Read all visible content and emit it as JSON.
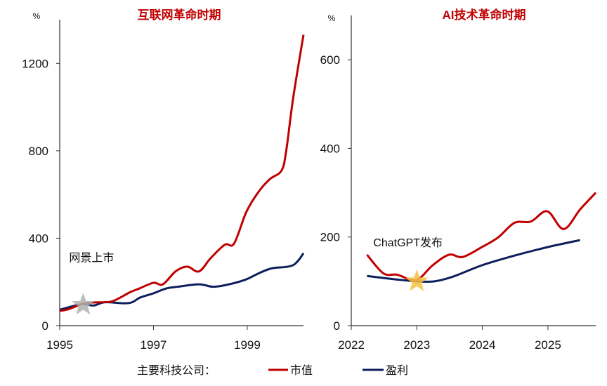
{
  "colors": {
    "market_cap": "#c00000",
    "earnings": "#0c1f5c",
    "axis": "#333333",
    "star_internet": "#b0b0b0",
    "star_ai": "#f5c242"
  },
  "legend": {
    "prefix": "主要科技公司：",
    "items": [
      {
        "label": "市值",
        "color": "#c00000"
      },
      {
        "label": "盈利",
        "color": "#0c1f5c"
      }
    ],
    "placement": "bottom"
  },
  "chart_data": [
    {
      "type": "line",
      "title": "互联网革命时期",
      "ylabel": "%",
      "xlim": [
        1995,
        2000.2
      ],
      "ylim": [
        0,
        1400
      ],
      "x_ticks": [
        1995,
        1997,
        1999
      ],
      "y_ticks": [
        0,
        400,
        800,
        1200
      ],
      "grid": false,
      "annotation": {
        "text": "网景上市",
        "x": 1995.5,
        "y": 95,
        "marker": "star"
      },
      "series": [
        {
          "name": "市值",
          "x": [
            1995.0,
            1995.2,
            1995.47,
            1995.7,
            1996.07,
            1996.27,
            1996.5,
            1996.7,
            1997.0,
            1997.2,
            1997.47,
            1997.72,
            1997.97,
            1998.22,
            1998.52,
            1998.72,
            1998.98,
            1999.23,
            1999.48,
            1999.73,
            1999.83,
            1999.98,
            2000.2
          ],
          "values": [
            67,
            76,
            98,
            106,
            109,
            126,
            153,
            170,
            196,
            189,
            248,
            270,
            248,
            309,
            370,
            376,
            520,
            609,
            670,
            709,
            798,
            1042,
            1331
          ]
        },
        {
          "name": "盈利",
          "x": [
            1995.0,
            1995.47,
            1995.72,
            1995.97,
            1996.47,
            1996.72,
            1997.0,
            1997.27,
            1997.52,
            1997.97,
            1998.27,
            1998.57,
            1998.97,
            1999.22,
            1999.52,
            1999.97,
            2000.2
          ],
          "values": [
            73,
            98,
            92,
            107,
            103,
            129,
            148,
            170,
            178,
            189,
            178,
            187,
            211,
            237,
            262,
            276,
            331
          ]
        }
      ]
    },
    {
      "type": "line",
      "title": "AI技术革命时期",
      "ylabel": "%",
      "xlim": [
        2022,
        2025.73
      ],
      "ylim": [
        0,
        700
      ],
      "x_ticks": [
        2022,
        2023,
        2024,
        2025
      ],
      "y_ticks": [
        0,
        200,
        400,
        600
      ],
      "grid": false,
      "annotation": {
        "text": "ChatGPT发布",
        "x": 2023.0,
        "y": 100,
        "marker": "star"
      },
      "series": [
        {
          "name": "市值",
          "x": [
            2022.24,
            2022.49,
            2022.7,
            2022.99,
            2023.24,
            2023.49,
            2023.7,
            2023.99,
            2024.24,
            2024.49,
            2024.74,
            2024.99,
            2025.24,
            2025.49,
            2025.73
          ],
          "values": [
            160,
            118,
            115,
            103,
            136,
            160,
            155,
            177,
            199,
            232,
            235,
            258,
            218,
            262,
            300
          ]
        },
        {
          "name": "盈利",
          "x": [
            2022.24,
            2022.7,
            2023.0,
            2023.27,
            2023.56,
            2023.99,
            2024.49,
            2024.99,
            2025.49
          ],
          "values": [
            112,
            104,
            100,
            100,
            111,
            136,
            158,
            177,
            193
          ]
        }
      ]
    }
  ]
}
